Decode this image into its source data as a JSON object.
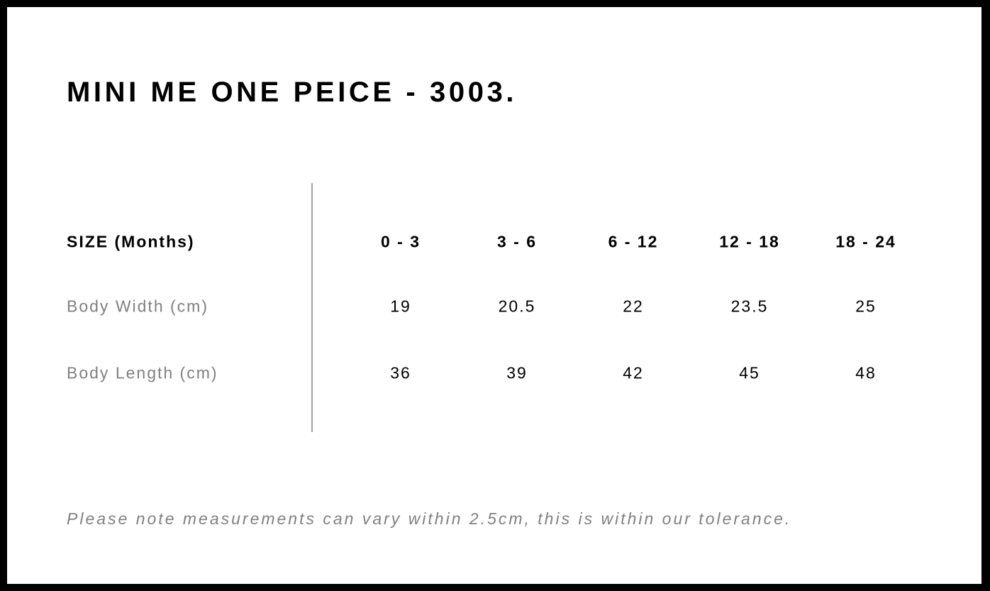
{
  "title": "MINI ME ONE PEICE - 3003.",
  "table": {
    "header_label": "SIZE (Months)",
    "sizes": [
      "0 - 3",
      "3 - 6",
      "6 - 12",
      "12 - 18",
      "18 - 24"
    ],
    "rows": [
      {
        "label": "Body Width (cm)",
        "values": [
          "19",
          "20.5",
          "22",
          "23.5",
          "25"
        ]
      },
      {
        "label": "Body Length (cm)",
        "values": [
          "36",
          "39",
          "42",
          "45",
          "48"
        ]
      }
    ]
  },
  "note": "Please note measurements can vary within 2.5cm, this is within our tolerance."
}
